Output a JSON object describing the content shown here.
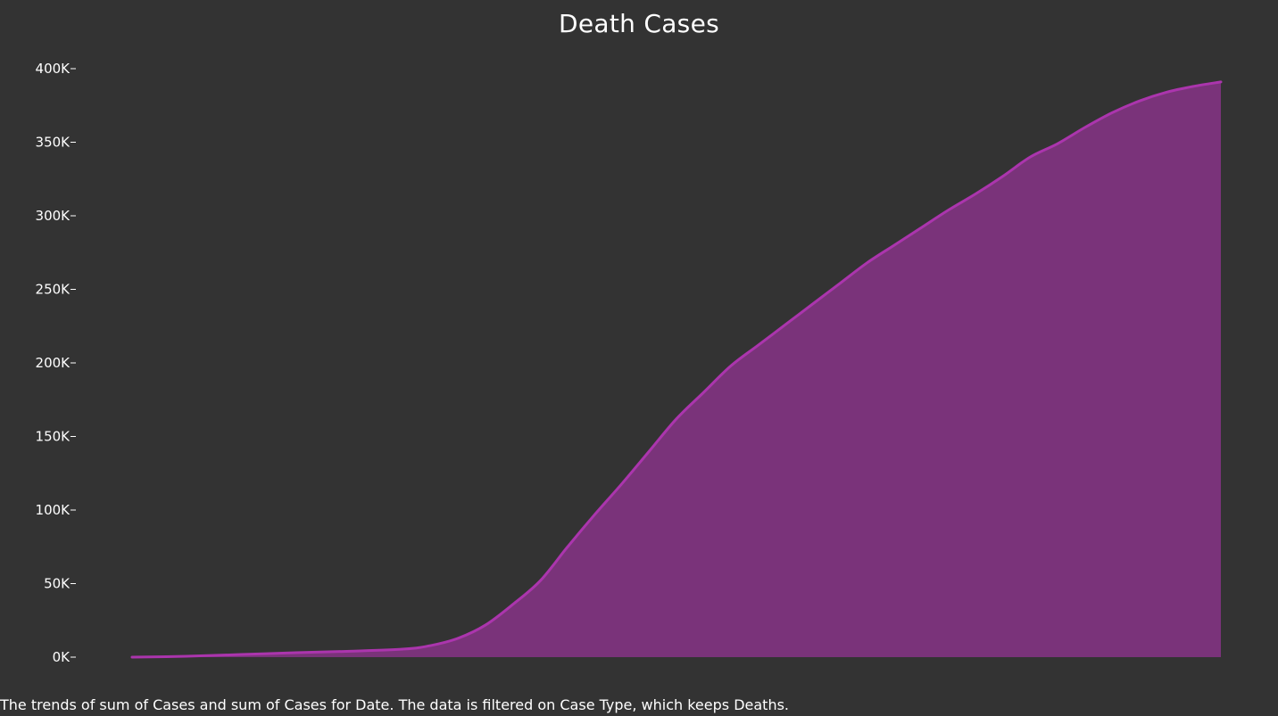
{
  "chart_data": {
    "type": "area",
    "title": "Death Cases",
    "caption": "The trends of sum of Cases and sum of Cases for Date. The data is filtered on Case Type, which keeps Deaths.",
    "xlabel": "",
    "ylabel": "",
    "ylim": [
      0,
      400000
    ],
    "y_ticks": [
      0,
      50000,
      100000,
      150000,
      200000,
      250000,
      300000,
      350000,
      400000
    ],
    "y_tick_labels": [
      "0K",
      "50K",
      "100K",
      "150K",
      "200K",
      "250K",
      "300K",
      "350K",
      "400K"
    ],
    "grid": false,
    "x_tick_labels_visible": false,
    "series": [
      {
        "name": "Deaths",
        "color": "#ab35ad",
        "fill_color": "#7a337a",
        "x": [
          0,
          10,
          20,
          30,
          40,
          50,
          55,
          60,
          65,
          70,
          75,
          80,
          85,
          90,
          95,
          100,
          105,
          110,
          115,
          120,
          125,
          130,
          135,
          140,
          145,
          150,
          155,
          160,
          165,
          170,
          175,
          180,
          185,
          190,
          195,
          200
        ],
        "values": [
          0,
          600,
          1800,
          3000,
          4000,
          5500,
          8000,
          13000,
          22000,
          36000,
          52000,
          75000,
          97000,
          118000,
          140000,
          162000,
          180000,
          198000,
          212000,
          226000,
          240000,
          254000,
          268000,
          280000,
          292000,
          304000,
          315000,
          327000,
          340000,
          349000,
          360000,
          370000,
          378000,
          384000,
          388000,
          391000
        ]
      }
    ]
  }
}
